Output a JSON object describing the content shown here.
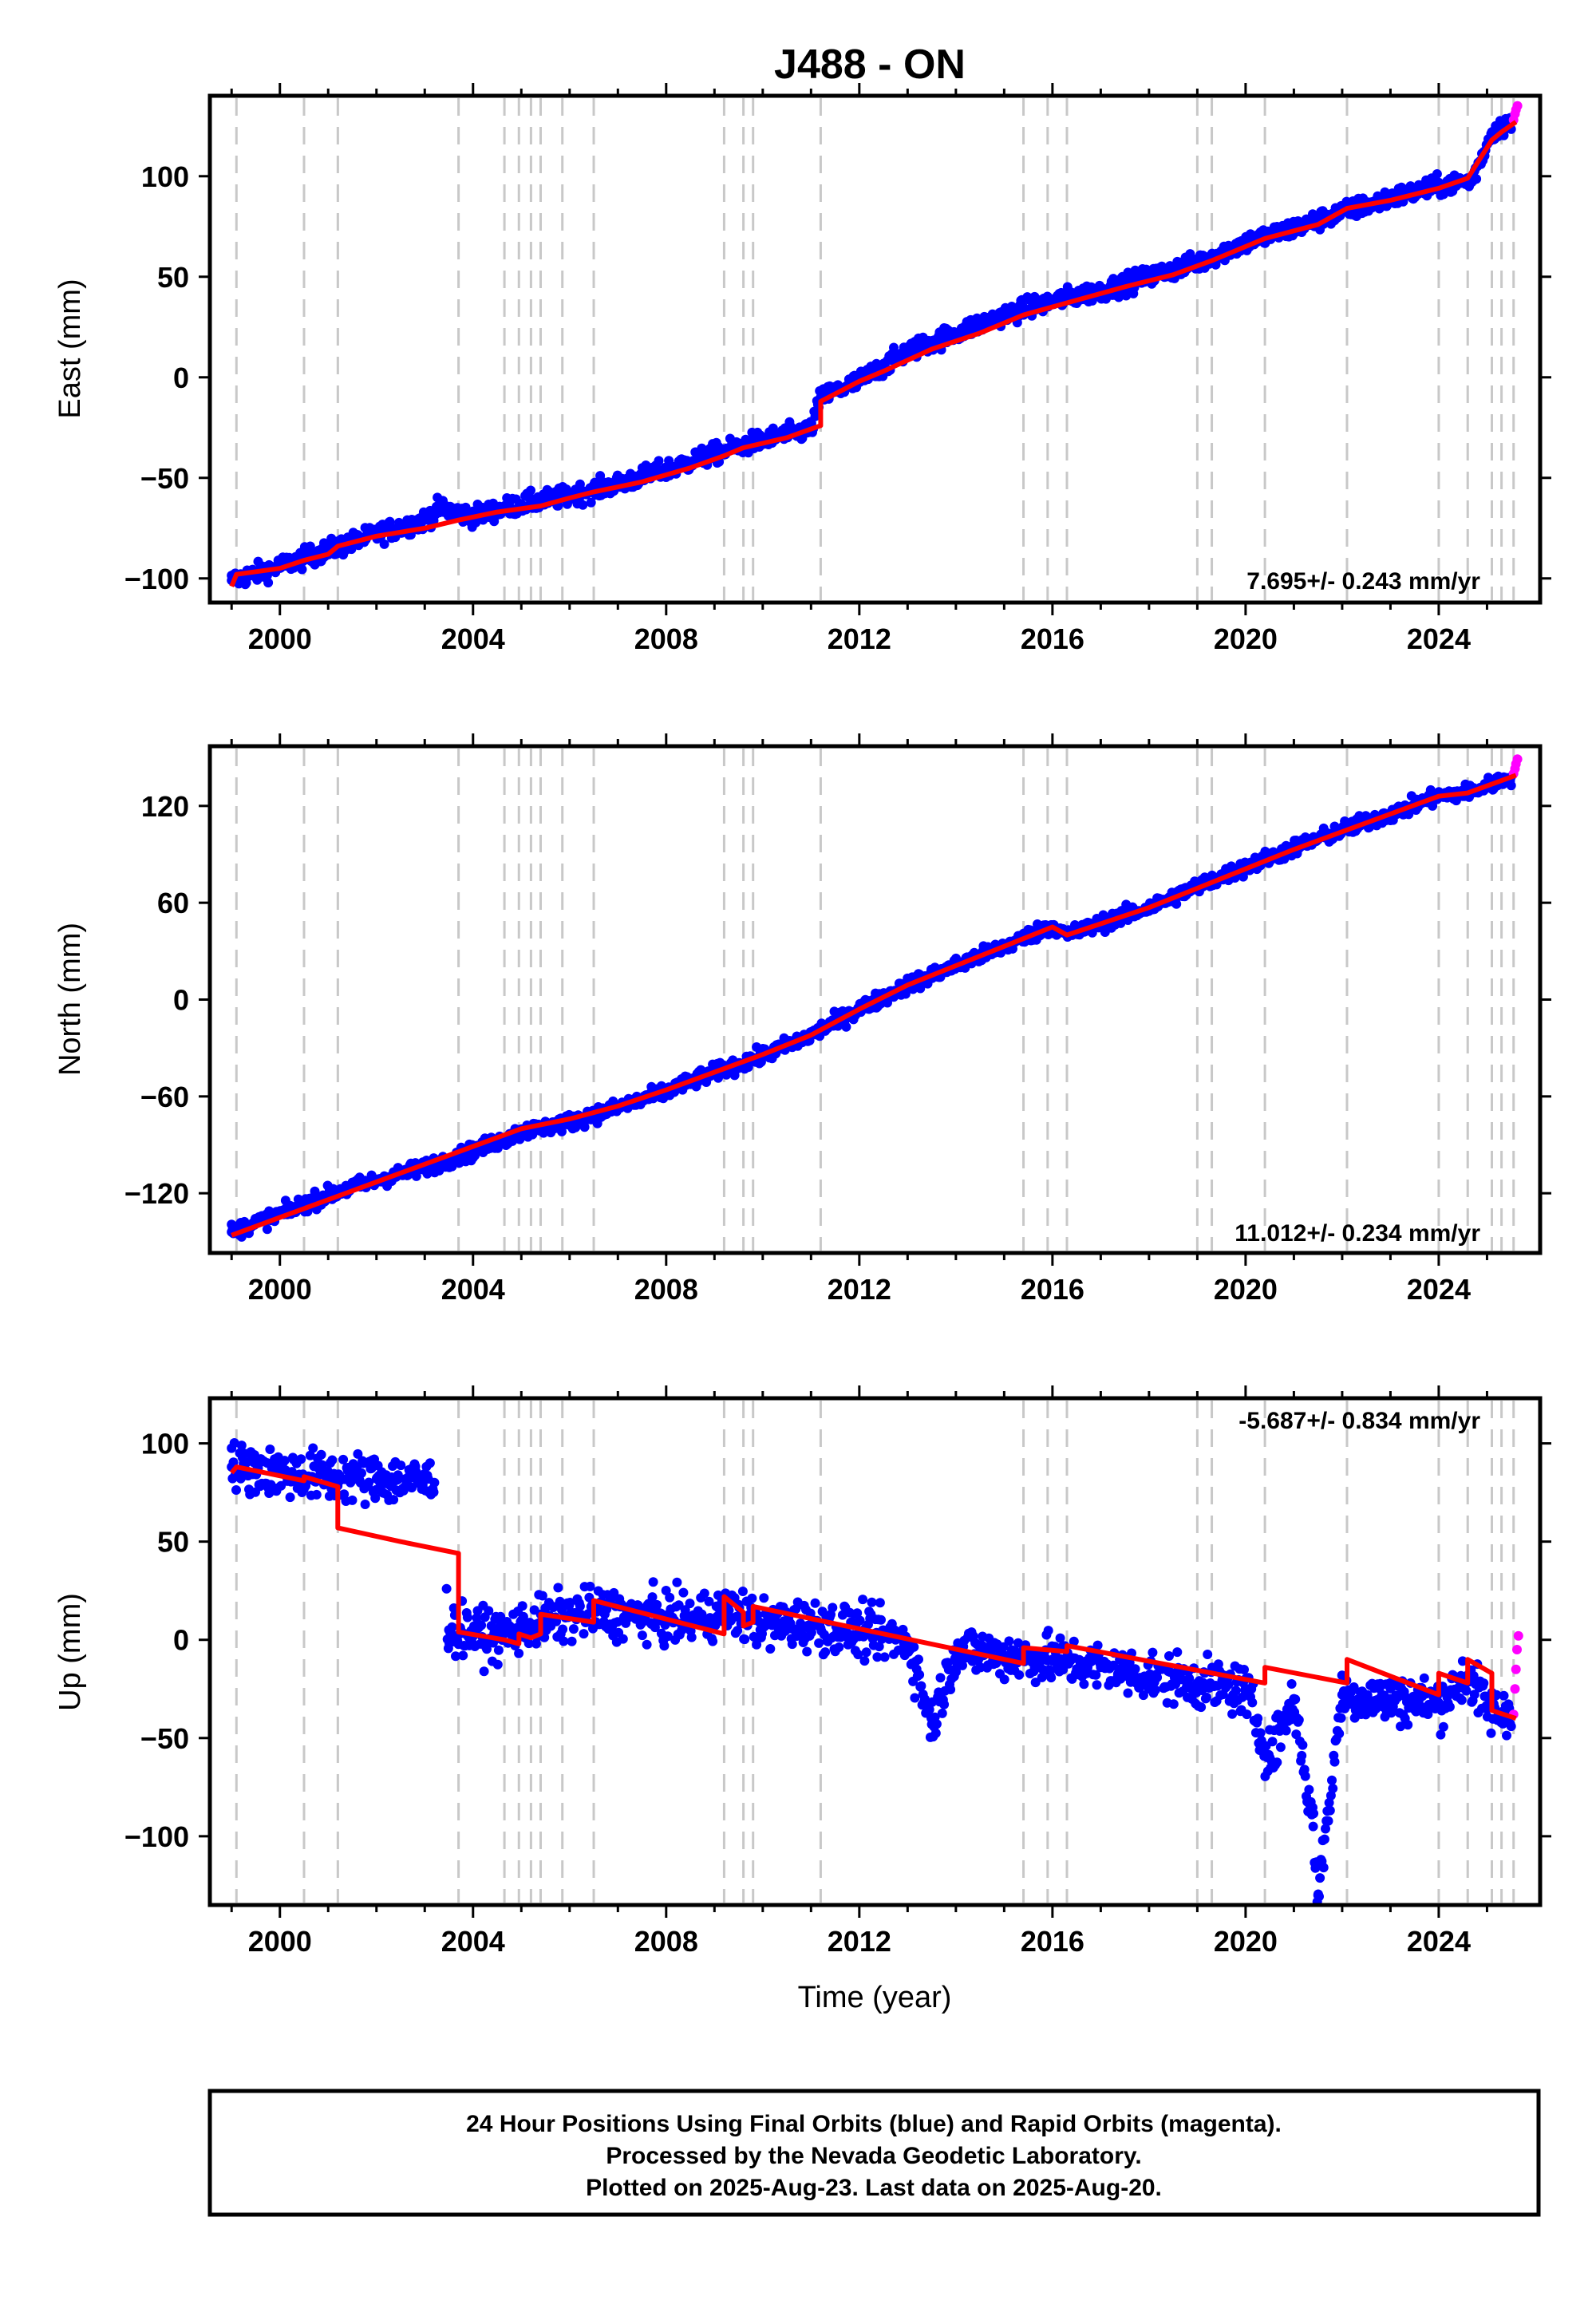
{
  "title": "J488 - ON",
  "colors": {
    "final_orbits": "#0000ff",
    "rapid_orbits": "#ff00ff",
    "model": "#ff0000",
    "event_lines": "#c8c8c8",
    "frame": "#000000"
  },
  "x_axis": {
    "label": "Time (year)",
    "range": [
      1998.55,
      2026.1
    ],
    "ticks": [
      2000,
      2004,
      2008,
      2012,
      2016,
      2020,
      2024
    ],
    "tick_labels": [
      "2000",
      "2004",
      "2008",
      "2012",
      "2016",
      "2020",
      "2024"
    ]
  },
  "event_lines": [
    1999.1,
    2000.5,
    2001.2,
    2003.7,
    2004.65,
    2004.95,
    2005.2,
    2005.4,
    2005.85,
    2006.5,
    2009.2,
    2009.6,
    2009.8,
    2011.2,
    2015.4,
    2015.9,
    2016.3,
    2019.0,
    2019.3,
    2020.4,
    2022.1,
    2024.0,
    2024.6,
    2025.1,
    2025.3,
    2025.55
  ],
  "chart_data": [
    {
      "type": "scatter",
      "panel": "east",
      "ylabel": "East (mm)",
      "ylim": [
        -112,
        140
      ],
      "yticks": [
        -100,
        -50,
        0,
        50,
        100
      ],
      "ytick_labels": [
        "−100",
        "−50",
        "0",
        "50",
        "100"
      ],
      "rate_label": "7.695+/- 0.243 mm/yr",
      "series": [
        {
          "role": "final_orbits",
          "x": [
            1999.0,
            2000.0,
            2001.0,
            2002.0,
            2003.0,
            2003.3,
            2004.0,
            2005.0,
            2006.0,
            2007.0,
            2008.0,
            2009.0,
            2010.0,
            2011.0,
            2011.2,
            2012.0,
            2013.0,
            2014.0,
            2015.0,
            2016.0,
            2017.0,
            2018.0,
            2019.0,
            2020.0,
            2021.0,
            2022.0,
            2023.0,
            2024.0,
            2024.7,
            2025.1,
            2025.5
          ],
          "y": [
            -101,
            -94,
            -86,
            -78,
            -71,
            -65,
            -69,
            -63,
            -59,
            -53,
            -46,
            -38,
            -31,
            -26,
            -10,
            -2,
            13,
            22,
            31,
            38,
            43,
            50,
            57,
            67,
            74,
            82,
            89,
            95,
            98,
            122,
            127
          ]
        },
        {
          "role": "rapid_orbits",
          "x": [
            2025.55,
            2025.58,
            2025.6,
            2025.63
          ],
          "y": [
            128,
            131,
            133,
            135
          ]
        },
        {
          "role": "model",
          "x": [
            1999.0,
            1999.1,
            2000.0,
            2000.5,
            2001.0,
            2001.2,
            2002.0,
            2003.0,
            2003.7,
            2004.5,
            2005.4,
            2006.0,
            2006.5,
            2007.5,
            2008.5,
            2009.2,
            2009.6,
            2010.5,
            2011.2,
            2011.2,
            2012.0,
            2012.5,
            2013.5,
            2014.5,
            2015.4,
            2016.3,
            2017.5,
            2018.5,
            2019.3,
            2020.4,
            2021.5,
            2022.1,
            2023.0,
            2024.0,
            2024.6,
            2025.1,
            2025.3,
            2025.6
          ],
          "y": [
            -104,
            -98,
            -95,
            -91,
            -88,
            -84,
            -79,
            -75,
            -71,
            -67,
            -64,
            -60,
            -57,
            -52,
            -45,
            -39,
            -35,
            -30,
            -24,
            -12,
            -2,
            3,
            14,
            22,
            31,
            37,
            45,
            51,
            58,
            69,
            76,
            84,
            88,
            94,
            99,
            118,
            122,
            127
          ]
        }
      ]
    },
    {
      "type": "scatter",
      "panel": "north",
      "ylabel": "North (mm)",
      "ylim": [
        -157,
        157
      ],
      "yticks": [
        -120,
        -60,
        0,
        60,
        120
      ],
      "ytick_labels": [
        "−120",
        "−60",
        "0",
        "60",
        "120"
      ],
      "rate_label": "11.012+/- 0.234 mm/yr",
      "series": [
        {
          "role": "final_orbits",
          "x": [
            1999.0,
            2000.0,
            2001.0,
            2002.0,
            2003.0,
            2004.0,
            2005.0,
            2006.0,
            2007.0,
            2008.0,
            2009.0,
            2010.0,
            2011.0,
            2012.0,
            2013.0,
            2014.0,
            2015.0,
            2016.0,
            2016.3,
            2017.0,
            2018.0,
            2019.0,
            2020.0,
            2021.0,
            2022.0,
            2023.0,
            2024.0,
            2024.7,
            2025.5
          ],
          "y": [
            -144,
            -133,
            -121,
            -112,
            -104,
            -94,
            -82,
            -76,
            -67,
            -57,
            -45,
            -35,
            -22,
            -6,
            9,
            21,
            33,
            46,
            40,
            47,
            57,
            70,
            82,
            94,
            105,
            115,
            126,
            129,
            138
          ]
        },
        {
          "role": "rapid_orbits",
          "x": [
            2025.55,
            2025.58,
            2025.6,
            2025.63
          ],
          "y": [
            140,
            143,
            146,
            149
          ]
        },
        {
          "role": "model",
          "x": [
            1999.0,
            2000.0,
            2001.0,
            2002.0,
            2003.0,
            2004.0,
            2005.0,
            2006.0,
            2007.0,
            2008.0,
            2009.0,
            2010.0,
            2011.0,
            2012.0,
            2013.0,
            2014.0,
            2015.0,
            2016.0,
            2016.3,
            2017.0,
            2018.0,
            2019.0,
            2020.0,
            2021.0,
            2022.0,
            2023.0,
            2024.0,
            2024.6,
            2025.6
          ],
          "y": [
            -146,
            -135,
            -124,
            -113,
            -102,
            -91,
            -80,
            -74,
            -66,
            -56,
            -45,
            -34,
            -22,
            -6,
            9,
            21,
            33,
            45,
            40,
            47,
            57,
            69,
            81,
            93,
            104,
            115,
            126,
            128,
            139
          ]
        }
      ]
    },
    {
      "type": "scatter",
      "panel": "up",
      "ylabel": "Up (mm)",
      "xlabel": "Time (year)",
      "ylim": [
        -135,
        123
      ],
      "yticks": [
        -100,
        -50,
        0,
        50,
        100
      ],
      "ytick_labels": [
        "−100",
        "−50",
        "0",
        "50",
        "100"
      ],
      "rate_label": "-5.687+/- 0.834 mm/yr",
      "series": [
        {
          "role": "final_orbits",
          "x": [
            1999.0,
            2000.0,
            2001.0,
            2002.0,
            2003.2,
            2003.5,
            2004.5,
            2005.5,
            2006.5,
            2007.5,
            2008.5,
            2009.3,
            2010.0,
            2011.0,
            2012.0,
            2013.0,
            2013.5,
            2014.0,
            2015.0,
            2016.0,
            2017.0,
            2018.0,
            2019.0,
            2020.0,
            2020.5,
            2021.0,
            2021.4,
            2021.5,
            2022.0,
            2023.0,
            2024.0,
            2024.6,
            2025.0,
            2025.5
          ],
          "y": [
            88,
            85,
            83,
            82,
            80,
            5,
            2,
            10,
            14,
            12,
            10,
            15,
            8,
            8,
            4,
            0,
            -43,
            -5,
            -8,
            -10,
            -14,
            -18,
            -22,
            -26,
            -60,
            -30,
            -95,
            -130,
            -28,
            -30,
            -32,
            -18,
            -35,
            -38
          ]
        },
        {
          "role": "rapid_orbits",
          "x": [
            2025.55,
            2025.58,
            2025.6,
            2025.62,
            2025.65
          ],
          "y": [
            -38,
            -25,
            -15,
            -5,
            2
          ]
        },
        {
          "role": "model",
          "x": [
            1999.0,
            1999.1,
            2000.5,
            2000.5,
            2001.2,
            2001.2,
            2002.5,
            2003.7,
            2003.7,
            2004.65,
            2004.95,
            2004.95,
            2005.2,
            2005.4,
            2005.4,
            2006.5,
            2006.5,
            2009.2,
            2009.2,
            2009.6,
            2009.6,
            2009.8,
            2009.8,
            2015.4,
            2015.4,
            2016.3,
            2016.3,
            2020.4,
            2020.4,
            2022.1,
            2022.1,
            2024.0,
            2024.0,
            2024.6,
            2024.6,
            2025.1,
            2025.1,
            2025.6
          ],
          "y": [
            85,
            88,
            81,
            83,
            78,
            57,
            50,
            44,
            4,
            0,
            -2,
            3,
            1,
            3,
            13,
            9,
            20,
            3,
            22,
            14,
            7,
            9,
            17,
            -12,
            -4,
            -6,
            -3,
            -22,
            -14,
            -22,
            -10,
            -28,
            -17,
            -22,
            -10,
            -17,
            -36,
            -40
          ]
        }
      ]
    }
  ],
  "footer": {
    "line1": "24 Hour Positions Using Final Orbits (blue) and Rapid Orbits (magenta).",
    "line2": "Processed by the Nevada Geodetic Laboratory.",
    "line3": "Plotted on 2025-Aug-23. Last data on 2025-Aug-20."
  }
}
